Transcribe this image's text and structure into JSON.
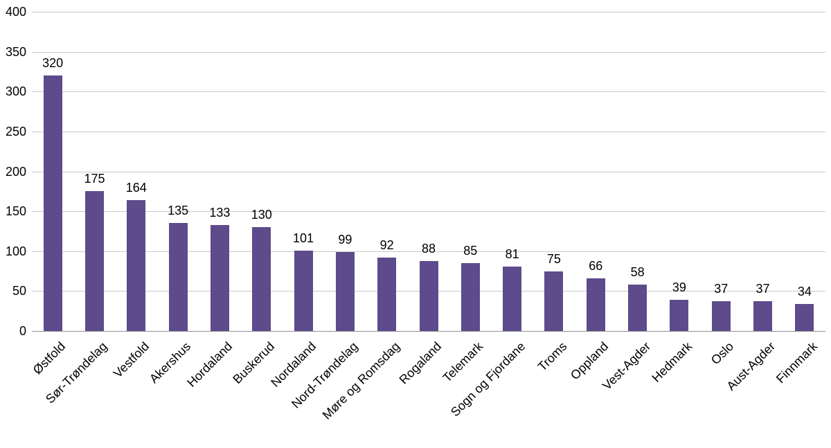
{
  "chart_data": {
    "type": "bar",
    "title": "",
    "categories": [
      "Østfold",
      "Sør-Trøndelag",
      "Vestfold",
      "Akershus",
      "Hordaland",
      "Buskerud",
      "Nordaland",
      "Nord-Trøndelag",
      "Møre og Romsdag",
      "Rogaland",
      "Telemark",
      "Sogn og Fjordane",
      "Troms",
      "Oppland",
      "Vest-Agder",
      "Hedmark",
      "Oslo",
      "Aust-Agder",
      "Finnmark"
    ],
    "values": [
      320,
      175,
      164,
      135,
      133,
      130,
      101,
      99,
      92,
      88,
      85,
      81,
      75,
      66,
      58,
      39,
      37,
      37,
      34
    ],
    "value_labels_shown": true,
    "xlabel": "",
    "ylabel": "",
    "ylim": [
      0,
      400
    ],
    "yticks": [
      0,
      50,
      100,
      150,
      200,
      250,
      300,
      350,
      400
    ],
    "grid": "horizontal",
    "legend": "none",
    "bar_color": "#5d4b8c",
    "background_color": "#ffffff",
    "gridline_color": "#c9c9c9",
    "axis_line_color": "#8f8f8f",
    "text_color": "#000000",
    "x_label_rotation_deg": -45
  }
}
